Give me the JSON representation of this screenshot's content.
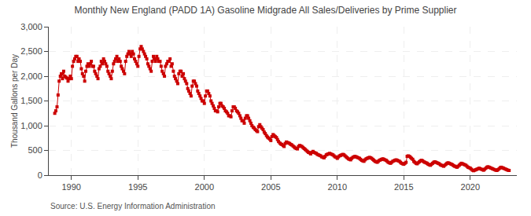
{
  "chart_data": {
    "type": "line",
    "title": "Monthly New England (PADD 1A) Gasoline Midgrade All Sales/Deliveries by Prime Supplier",
    "ylabel": "Thousand Gallons per Day",
    "annotations": [
      "Source: U.S. Energy Information Administration"
    ],
    "color": "#cc0000",
    "marker": "square",
    "line_style": "solid",
    "grid": true,
    "xlim": [
      1988.3,
      2023.5
    ],
    "xticks": [
      1990,
      1995,
      2000,
      2005,
      2010,
      2015,
      2020
    ],
    "ylim": [
      0,
      3000
    ],
    "yticks": [
      0,
      500,
      {
        "value": 1000,
        "label": "1,000"
      },
      {
        "value": 1500,
        "label": "1,500"
      },
      {
        "value": 2000,
        "label": "2,000"
      },
      {
        "value": 2500,
        "label": "2,500"
      },
      {
        "value": 3000,
        "label": "3,000"
      }
    ],
    "x": [
      1988.75,
      1988.83,
      1988.92,
      1989.0,
      1989.08,
      1989.17,
      1989.25,
      1989.33,
      1989.42,
      1989.5,
      1989.58,
      1989.67,
      1989.75,
      1989.83,
      1989.92,
      1990.0,
      1990.08,
      1990.17,
      1990.25,
      1990.33,
      1990.42,
      1990.5,
      1990.58,
      1990.67,
      1990.75,
      1990.83,
      1990.92,
      1991.0,
      1991.08,
      1991.17,
      1991.25,
      1991.33,
      1991.42,
      1991.5,
      1991.58,
      1991.67,
      1991.75,
      1991.83,
      1991.92,
      1992.0,
      1992.08,
      1992.17,
      1992.25,
      1992.33,
      1992.42,
      1992.5,
      1992.58,
      1992.67,
      1992.75,
      1992.83,
      1992.92,
      1993.0,
      1993.08,
      1993.17,
      1993.25,
      1993.33,
      1993.42,
      1993.5,
      1993.58,
      1993.67,
      1993.75,
      1993.83,
      1993.92,
      1994.0,
      1994.08,
      1994.17,
      1994.25,
      1994.33,
      1994.42,
      1994.5,
      1994.58,
      1994.67,
      1994.75,
      1994.83,
      1994.92,
      1995.0,
      1995.08,
      1995.17,
      1995.25,
      1995.33,
      1995.42,
      1995.5,
      1995.58,
      1995.67,
      1995.75,
      1995.83,
      1995.92,
      1996.0,
      1996.08,
      1996.17,
      1996.25,
      1996.33,
      1996.42,
      1996.5,
      1996.58,
      1996.67,
      1996.75,
      1996.83,
      1996.92,
      1997.0,
      1997.08,
      1997.17,
      1997.25,
      1997.33,
      1997.42,
      1997.5,
      1997.58,
      1997.67,
      1997.75,
      1997.83,
      1997.92,
      1998.0,
      1998.08,
      1998.17,
      1998.25,
      1998.33,
      1998.42,
      1998.5,
      1998.58,
      1998.67,
      1998.75,
      1998.83,
      1998.92,
      1999.0,
      1999.08,
      1999.17,
      1999.25,
      1999.33,
      1999.42,
      1999.5,
      1999.58,
      1999.67,
      1999.75,
      1999.83,
      1999.92,
      2000.0,
      2000.08,
      2000.17,
      2000.25,
      2000.33,
      2000.42,
      2000.5,
      2000.58,
      2000.67,
      2000.75,
      2000.83,
      2000.92,
      2001.0,
      2001.08,
      2001.17,
      2001.25,
      2001.33,
      2001.42,
      2001.5,
      2001.58,
      2001.67,
      2001.75,
      2001.83,
      2001.92,
      2002.0,
      2002.08,
      2002.17,
      2002.25,
      2002.33,
      2002.42,
      2002.5,
      2002.58,
      2002.67,
      2002.75,
      2002.83,
      2002.92,
      2003.0,
      2003.08,
      2003.17,
      2003.25,
      2003.33,
      2003.42,
      2003.5,
      2003.58,
      2003.67,
      2003.75,
      2003.83,
      2003.92,
      2004.0,
      2004.08,
      2004.17,
      2004.25,
      2004.33,
      2004.42,
      2004.5,
      2004.58,
      2004.67,
      2004.75,
      2004.83,
      2004.92,
      2005.0,
      2005.08,
      2005.17,
      2005.25,
      2005.33,
      2005.42,
      2005.5,
      2005.58,
      2005.67,
      2005.75,
      2005.83,
      2005.92,
      2006.0,
      2006.08,
      2006.17,
      2006.25,
      2006.33,
      2006.42,
      2006.5,
      2006.58,
      2006.67,
      2006.75,
      2006.83,
      2006.92,
      2007.0,
      2007.08,
      2007.17,
      2007.25,
      2007.33,
      2007.42,
      2007.5,
      2007.58,
      2007.67,
      2007.75,
      2007.83,
      2007.92,
      2008.0,
      2008.08,
      2008.17,
      2008.25,
      2008.33,
      2008.42,
      2008.5,
      2008.58,
      2008.67,
      2008.75,
      2008.83,
      2008.92,
      2009.0,
      2009.08,
      2009.17,
      2009.25,
      2009.33,
      2009.42,
      2009.5,
      2009.58,
      2009.67,
      2009.75,
      2009.83,
      2009.92,
      2010.0,
      2010.08,
      2010.17,
      2010.25,
      2010.33,
      2010.42,
      2010.5,
      2010.58,
      2010.67,
      2010.75,
      2010.83,
      2010.92,
      2011.0,
      2011.08,
      2011.17,
      2011.25,
      2011.33,
      2011.42,
      2011.5,
      2011.58,
      2011.67,
      2011.75,
      2011.83,
      2011.92,
      2012.0,
      2012.08,
      2012.17,
      2012.25,
      2012.33,
      2012.42,
      2012.5,
      2012.58,
      2012.67,
      2012.75,
      2012.83,
      2012.92,
      2013.0,
      2013.08,
      2013.17,
      2013.25,
      2013.33,
      2013.42,
      2013.5,
      2013.58,
      2013.67,
      2013.75,
      2013.83,
      2013.92,
      2014.0,
      2014.08,
      2014.17,
      2014.25,
      2014.33,
      2014.42,
      2014.5,
      2014.58,
      2014.67,
      2014.75,
      2014.83,
      2014.92,
      2015.0,
      2015.08,
      2015.17,
      2015.25,
      2015.33,
      2015.42,
      2015.5,
      2015.58,
      2015.67,
      2015.75,
      2015.83,
      2015.92,
      2016.0,
      2016.08,
      2016.17,
      2016.25,
      2016.33,
      2016.42,
      2016.5,
      2016.58,
      2016.67,
      2016.75,
      2016.83,
      2016.92,
      2017.0,
      2017.08,
      2017.17,
      2017.25,
      2017.33,
      2017.42,
      2017.5,
      2017.58,
      2017.67,
      2017.75,
      2017.83,
      2017.92,
      2018.0,
      2018.08,
      2018.17,
      2018.25,
      2018.33,
      2018.42,
      2018.5,
      2018.58,
      2018.67,
      2018.75,
      2018.83,
      2018.92,
      2019.0,
      2019.08,
      2019.17,
      2019.25,
      2019.33,
      2019.42,
      2019.5,
      2019.58,
      2019.67,
      2019.75,
      2019.83,
      2019.92,
      2020.0,
      2020.08,
      2020.17,
      2020.25,
      2020.33,
      2020.42,
      2020.5,
      2020.58,
      2020.67,
      2020.75,
      2020.83,
      2020.92,
      2021.0,
      2021.08,
      2021.17,
      2021.25,
      2021.33,
      2021.42,
      2021.5,
      2021.58,
      2021.67,
      2021.75,
      2021.83,
      2021.92,
      2022.0,
      2022.08,
      2022.17,
      2022.25,
      2022.33,
      2022.42,
      2022.5,
      2022.58,
      2022.67,
      2022.75,
      2022.83,
      2022.92
    ],
    "values": [
      1250,
      1300,
      1380,
      1620,
      1900,
      2000,
      2050,
      1950,
      2100,
      2000,
      1980,
      1960,
      1900,
      1950,
      2000,
      1950,
      2200,
      2300,
      2350,
      2400,
      2400,
      2300,
      2350,
      2300,
      2150,
      2050,
      2000,
      1900,
      2100,
      2200,
      2250,
      2200,
      2250,
      2300,
      2200,
      2200,
      2100,
      2050,
      2000,
      1950,
      2150,
      2200,
      2300,
      2250,
      2350,
      2300,
      2250,
      2200,
      2100,
      2050,
      2000,
      1950,
      2100,
      2250,
      2300,
      2350,
      2400,
      2300,
      2350,
      2300,
      2200,
      2150,
      2100,
      2050,
      2300,
      2400,
      2450,
      2500,
      2450,
      2400,
      2500,
      2450,
      2350,
      2300,
      2250,
      2200,
      2400,
      2550,
      2600,
      2550,
      2500,
      2450,
      2400,
      2350,
      2250,
      2200,
      2150,
      2100,
      2300,
      2400,
      2350,
      2300,
      2400,
      2350,
      2300,
      2300,
      2200,
      2100,
      2050,
      2000,
      2200,
      2250,
      2300,
      2300,
      2350,
      2200,
      2250,
      2100,
      2000,
      1950,
      1900,
      1850,
      2050,
      2100,
      2100,
      2000,
      2050,
      1950,
      1900,
      1850,
      1750,
      1700,
      1650,
      1600,
      1800,
      1900,
      1900,
      1850,
      1800,
      1700,
      1650,
      1600,
      1550,
      1500,
      1500,
      1450,
      1600,
      1700,
      1700,
      1650,
      1600,
      1500,
      1450,
      1400,
      1350,
      1300,
      1300,
      1280,
      1380,
      1450,
      1450,
      1400,
      1380,
      1350,
      1300,
      1280,
      1250,
      1200,
      1200,
      1180,
      1300,
      1380,
      1380,
      1350,
      1300,
      1280,
      1250,
      1200,
      1150,
      1100,
      1100,
      1050,
      1150,
      1200,
      1200,
      1150,
      1100,
      1050,
      1000,
      970,
      950,
      920,
      900,
      880,
      980,
      1020,
      980,
      950,
      920,
      870,
      840,
      800,
      770,
      750,
      730,
      700,
      780,
      820,
      800,
      780,
      760,
      720,
      680,
      650,
      630,
      620,
      600,
      580,
      640,
      670,
      660,
      650,
      640,
      620,
      610,
      590,
      570,
      550,
      540,
      530,
      580,
      600,
      590,
      580,
      560,
      540,
      520,
      500,
      480,
      460,
      450,
      430,
      460,
      480,
      460,
      450,
      440,
      420,
      410,
      400,
      390,
      370,
      360,
      350,
      380,
      410,
      420,
      430,
      440,
      430,
      420,
      410,
      390,
      370,
      360,
      340,
      370,
      390,
      400,
      410,
      420,
      410,
      390,
      370,
      350,
      330,
      320,
      310,
      340,
      360,
      370,
      380,
      370,
      360,
      350,
      340,
      320,
      300,
      290,
      280,
      310,
      330,
      340,
      350,
      360,
      350,
      340,
      320,
      300,
      280,
      270,
      260,
      280,
      300,
      310,
      320,
      330,
      320,
      310,
      300,
      280,
      260,
      250,
      240,
      260,
      280,
      290,
      300,
      310,
      300,
      290,
      280,
      260,
      240,
      230,
      220,
      240,
      260,
      380,
      390,
      380,
      360,
      340,
      320,
      280,
      260,
      240,
      230,
      250,
      270,
      290,
      300,
      290,
      270,
      260,
      250,
      240,
      220,
      210,
      200,
      220,
      240,
      260,
      270,
      260,
      250,
      240,
      230,
      210,
      200,
      190,
      180,
      200,
      220,
      240,
      250,
      240,
      230,
      220,
      210,
      190,
      180,
      170,
      160,
      180,
      200,
      220,
      240,
      230,
      220,
      210,
      200,
      180,
      160,
      150,
      140,
      120,
      100,
      90,
      100,
      110,
      120,
      130,
      140,
      130,
      120,
      110,
      100,
      120,
      140,
      160,
      170,
      160,
      150,
      140,
      130,
      120,
      110,
      100,
      95,
      110,
      130,
      150,
      160,
      150,
      140,
      130,
      120,
      110,
      100,
      95
    ]
  }
}
